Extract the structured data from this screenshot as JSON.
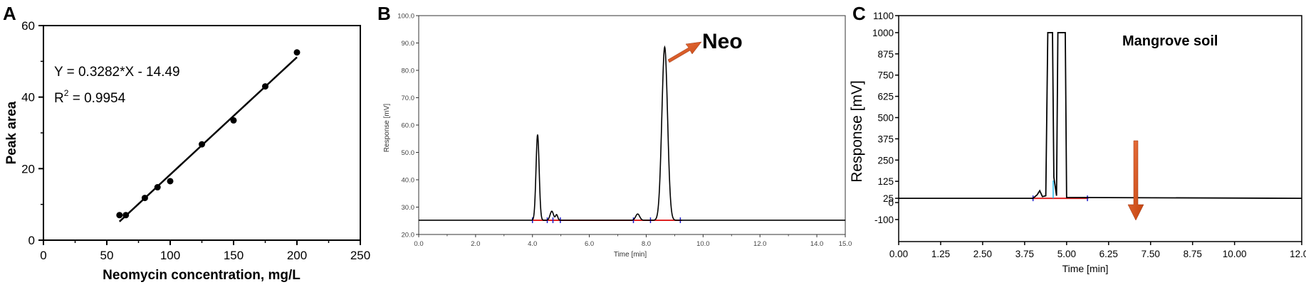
{
  "chart_data": [
    {
      "panel": "A",
      "type": "scatter",
      "xlabel": "Neomycin concentration, mg/L",
      "ylabel": "Peak area",
      "xlim": [
        0,
        250
      ],
      "ylim": [
        0,
        60
      ],
      "x_ticks": [
        "0",
        "50",
        "100",
        "150",
        "200",
        "250"
      ],
      "y_ticks": [
        "0",
        "20",
        "40",
        "60"
      ],
      "points": [
        {
          "x": 60,
          "y": 7.0
        },
        {
          "x": 65,
          "y": 7.0
        },
        {
          "x": 80,
          "y": 11.8
        },
        {
          "x": 90,
          "y": 14.8
        },
        {
          "x": 100,
          "y": 16.5
        },
        {
          "x": 125,
          "y": 26.8
        },
        {
          "x": 150,
          "y": 33.5
        },
        {
          "x": 175,
          "y": 43.0
        },
        {
          "x": 200,
          "y": 52.5
        }
      ],
      "fit": {
        "slope": 0.3282,
        "intercept": -14.49,
        "x_range": [
          60,
          200
        ]
      },
      "annotations": {
        "equation": "Y = 0.3282*X - 14.49",
        "r2_prefix": "R",
        "r2_sup": "2",
        "r2_value": " = 0.9954"
      },
      "grid": false
    },
    {
      "panel": "B",
      "type": "line",
      "xlabel": "Time [min]",
      "ylabel": "Response [mV]",
      "xlim": [
        0,
        15
      ],
      "ylim": [
        20,
        100
      ],
      "x_ticks": [
        "0.0",
        "2.0",
        "4.0",
        "6.0",
        "8.0",
        "10.0",
        "12.0",
        "14.0",
        "15.0"
      ],
      "y_ticks": [
        "20.0",
        "30.0",
        "40.0",
        "50.0",
        "60.0",
        "70.0",
        "80.0",
        "90.0",
        "100.0"
      ],
      "baseline": 25.2,
      "peaks": [
        {
          "t": 4.18,
          "height": 56.5,
          "width": 0.055
        },
        {
          "t": 4.68,
          "height": 28.5,
          "width": 0.06
        },
        {
          "t": 4.85,
          "height": 27.2,
          "width": 0.04
        },
        {
          "t": 7.7,
          "height": 27.5,
          "width": 0.07
        },
        {
          "t": 8.65,
          "height": 88.5,
          "width": 0.1
        }
      ],
      "annotations": {
        "peak_label": "Neo",
        "peak_time": 8.65
      }
    },
    {
      "panel": "C",
      "type": "line",
      "xlabel": "Time [min]",
      "ylabel": "Response [mV]",
      "xlim": [
        0,
        12
      ],
      "ylim": [
        -100,
        1100
      ],
      "x_ticks": [
        "0.00",
        "1.25",
        "2.50",
        "3.75",
        "5.00",
        "6.25",
        "7.50",
        "8.75",
        "10.00",
        "12.00"
      ],
      "y_ticks": [
        "-100",
        "0",
        "25",
        "125",
        "250",
        "375",
        "500",
        "625",
        "750",
        "875",
        "1000",
        "1100"
      ],
      "baseline": 25,
      "trace": [
        [
          0,
          25
        ],
        [
          4.0,
          25
        ],
        [
          4.12,
          45
        ],
        [
          4.2,
          70
        ],
        [
          4.28,
          35
        ],
        [
          4.38,
          40
        ],
        [
          4.44,
          1000
        ],
        [
          4.58,
          1000
        ],
        [
          4.62,
          150
        ],
        [
          4.7,
          40
        ],
        [
          4.74,
          1000
        ],
        [
          4.96,
          1000
        ],
        [
          5.0,
          30
        ],
        [
          12.0,
          25
        ]
      ],
      "annotations": {
        "title": "Mangrove soil",
        "arrow_time": 8.4
      }
    }
  ],
  "panel_letters": [
    "A",
    "B",
    "C"
  ],
  "colors": {
    "line": "#000000",
    "baseline_red": "#dd2222",
    "marker_blue": "#1a1acc",
    "marker_cyan": "#22bbee",
    "arrow_orange": "#d9531e"
  }
}
